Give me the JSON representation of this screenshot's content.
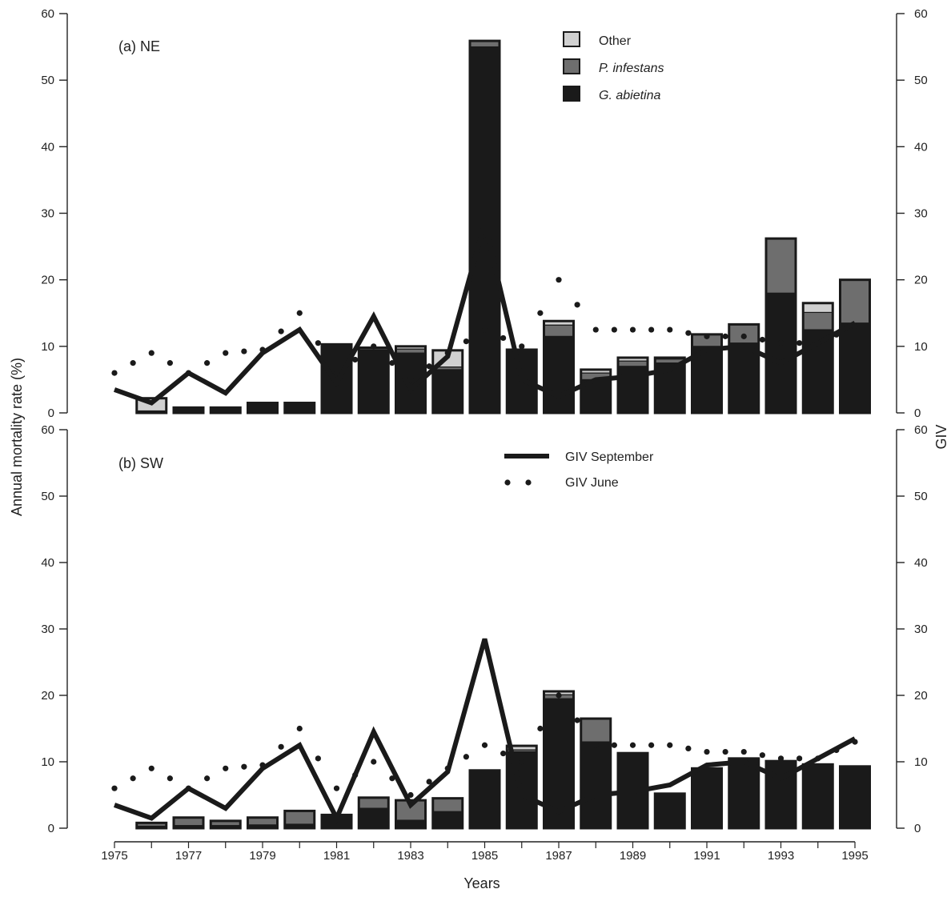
{
  "figure": {
    "ylabel_left": "Annual mortality rate (%)",
    "ylabel_right": "GIV",
    "xlabel": "Years"
  },
  "legend_species": [
    {
      "label": "Other",
      "color": "#d0d0d0",
      "italic": false
    },
    {
      "label": "P. infestans",
      "color": "#6e6e6e",
      "italic": true
    },
    {
      "label": "G. abietina",
      "color": "#1a1a1a",
      "italic": true
    }
  ],
  "legend_giv": [
    {
      "label": "GIV September",
      "style": "solid"
    },
    {
      "label": "GIV June",
      "style": "dotted"
    }
  ],
  "colors": {
    "g_abietina": "#1a1a1a",
    "p_infestans": "#6e6e6e",
    "other": "#d0d0d0",
    "outline": "#1a1a1a",
    "line": "#1a1a1a"
  },
  "chart_data": [
    {
      "type": "bar",
      "stacked": true,
      "title": "(a) NE",
      "xlabel": "",
      "ylabel": "Annual mortality rate (%)",
      "ylabel_right": "",
      "ylim": [
        0,
        60
      ],
      "y2lim": [
        0,
        60
      ],
      "yticks": [
        0,
        10,
        20,
        30,
        40,
        50,
        60
      ],
      "x": [
        1975,
        1976,
        1977,
        1978,
        1979,
        1980,
        1981,
        1982,
        1983,
        1984,
        1985,
        1986,
        1987,
        1988,
        1989,
        1990,
        1991,
        1992,
        1993,
        1994,
        1995
      ],
      "series": [
        {
          "name": "G. abietina",
          "values": [
            0,
            0.3,
            0.8,
            0.8,
            1.5,
            1.5,
            10.3,
            9.5,
            9.0,
            6.5,
            55.0,
            9.5,
            11.5,
            5.0,
            7.0,
            7.5,
            10.0,
            10.5,
            18.0,
            12.5,
            13.5
          ]
        },
        {
          "name": "P. infestans",
          "values": [
            0,
            0,
            0,
            0,
            0,
            0,
            0,
            0.3,
            0.6,
            0.4,
            0.9,
            0,
            1.7,
            1.0,
            0.8,
            0.6,
            1.8,
            2.8,
            8.2,
            2.6,
            6.5
          ]
        },
        {
          "name": "Other",
          "values": [
            0,
            1.9,
            0,
            0,
            0,
            0,
            0,
            0,
            0.4,
            2.5,
            0,
            0,
            0.6,
            0.5,
            0.5,
            0.2,
            0,
            0,
            0,
            1.4,
            0
          ]
        }
      ],
      "lines": [
        {
          "name": "GIV September",
          "values": [
            3.5,
            1.5,
            6.0,
            3.0,
            9.0,
            12.5,
            4.5,
            14.5,
            3.5,
            8.5,
            28.5,
            5.0,
            2.5,
            5.0,
            5.5,
            6.5,
            9.5,
            10.0,
            7.5,
            10.5,
            13.5
          ]
        },
        {
          "name": "GIV June",
          "values": [
            6.0,
            9.0,
            6.0,
            9.0,
            9.5,
            15.0,
            6.0,
            10.0,
            5.0,
            9.0,
            12.5,
            10.0,
            20.0,
            12.5,
            12.5,
            12.5,
            11.5,
            11.5,
            10.5,
            10.5,
            13.0
          ]
        }
      ]
    },
    {
      "type": "bar",
      "stacked": true,
      "title": "(b) SW",
      "xlabel": "Years",
      "ylabel": "",
      "ylabel_right": "GIV",
      "ylim": [
        0,
        60
      ],
      "y2lim": [
        0,
        60
      ],
      "yticks": [
        0,
        10,
        20,
        30,
        40,
        50,
        60
      ],
      "xtick_labels": [
        "1975",
        "1977",
        "1979",
        "1981",
        "1983",
        "1985",
        "1987",
        "1989",
        "1991",
        "1993",
        "1995"
      ],
      "x": [
        1975,
        1976,
        1977,
        1978,
        1979,
        1980,
        1981,
        1982,
        1983,
        1984,
        1985,
        1986,
        1987,
        1988,
        1989,
        1990,
        1991,
        1992,
        1993,
        1994,
        1995
      ],
      "series": [
        {
          "name": "G. abietina",
          "values": [
            0,
            0.3,
            0.4,
            0.4,
            0.5,
            0.6,
            2.0,
            3.0,
            1.2,
            2.5,
            8.7,
            11.5,
            19.5,
            13.0,
            11.3,
            5.2,
            9.0,
            10.5,
            10.1,
            9.6,
            9.3
          ]
        },
        {
          "name": "P. infestans",
          "values": [
            0,
            0.5,
            1.2,
            0.7,
            1.1,
            2.0,
            0,
            1.6,
            3.0,
            2.0,
            0,
            0.3,
            0.6,
            3.5,
            0,
            0,
            0,
            0,
            0,
            0,
            0
          ]
        },
        {
          "name": "Other",
          "values": [
            0,
            0,
            0,
            0,
            0,
            0,
            0,
            0,
            0,
            0,
            0,
            0.6,
            0.5,
            0,
            0,
            0,
            0,
            0,
            0,
            0,
            0
          ]
        }
      ],
      "lines": [
        {
          "name": "GIV September",
          "values": [
            3.5,
            1.5,
            6.0,
            3.0,
            9.0,
            12.5,
            1.5,
            14.5,
            3.5,
            8.5,
            28.5,
            5.0,
            2.5,
            5.0,
            5.5,
            6.5,
            9.5,
            10.0,
            7.5,
            10.5,
            13.5
          ]
        },
        {
          "name": "GIV June",
          "values": [
            6.0,
            9.0,
            6.0,
            9.0,
            9.5,
            15.0,
            6.0,
            10.0,
            5.0,
            9.0,
            12.5,
            10.0,
            20.0,
            12.5,
            12.5,
            12.5,
            11.5,
            11.5,
            10.5,
            10.5,
            13.0
          ]
        }
      ]
    }
  ]
}
